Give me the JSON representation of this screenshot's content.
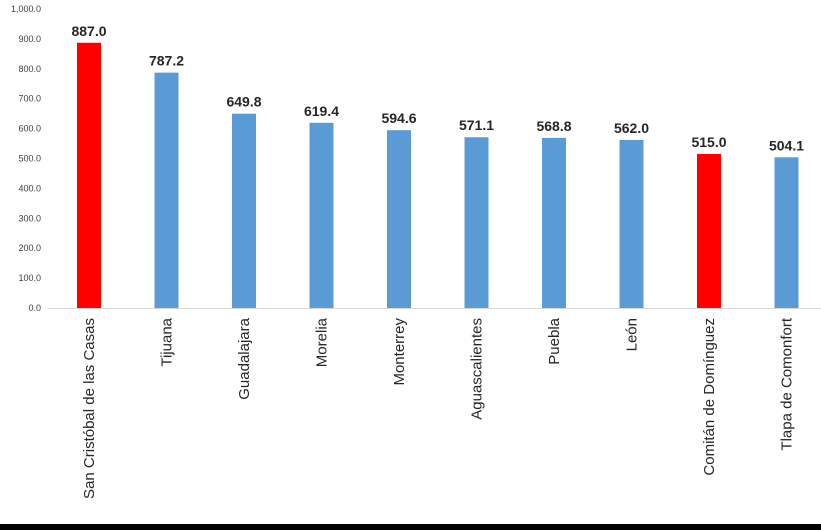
{
  "chart_data": {
    "type": "bar",
    "title": "",
    "xlabel": "",
    "ylabel": "",
    "ylim": [
      0,
      1000
    ],
    "yticks": [
      "0.0",
      "100.0",
      "200.0",
      "300.0",
      "400.0",
      "500.0",
      "600.0",
      "700.0",
      "800.0",
      "900.0",
      "1,000.0"
    ],
    "grid": false,
    "categories": [
      "San Cristóbal de las Casas",
      "Tijuana",
      "Guadalajara",
      "Morelia",
      "Monterrey",
      "Aguascalientes",
      "Puebla",
      "León",
      "Comitán de Domínguez",
      "Tlapa de Comonfort"
    ],
    "values": [
      887.0,
      787.2,
      649.8,
      619.4,
      594.6,
      571.1,
      568.8,
      562.0,
      515.0,
      504.1
    ],
    "data_labels": [
      "887.0",
      "787.2",
      "649.8",
      "619.4",
      "594.6",
      "571.1",
      "568.8",
      "562.0",
      "515.0",
      "504.1"
    ],
    "highlighted": [
      0,
      8
    ],
    "colors": {
      "default": "#5B9BD5",
      "highlight": "#FF0000",
      "axis": "#D9D9D9",
      "text": "#262626"
    }
  }
}
